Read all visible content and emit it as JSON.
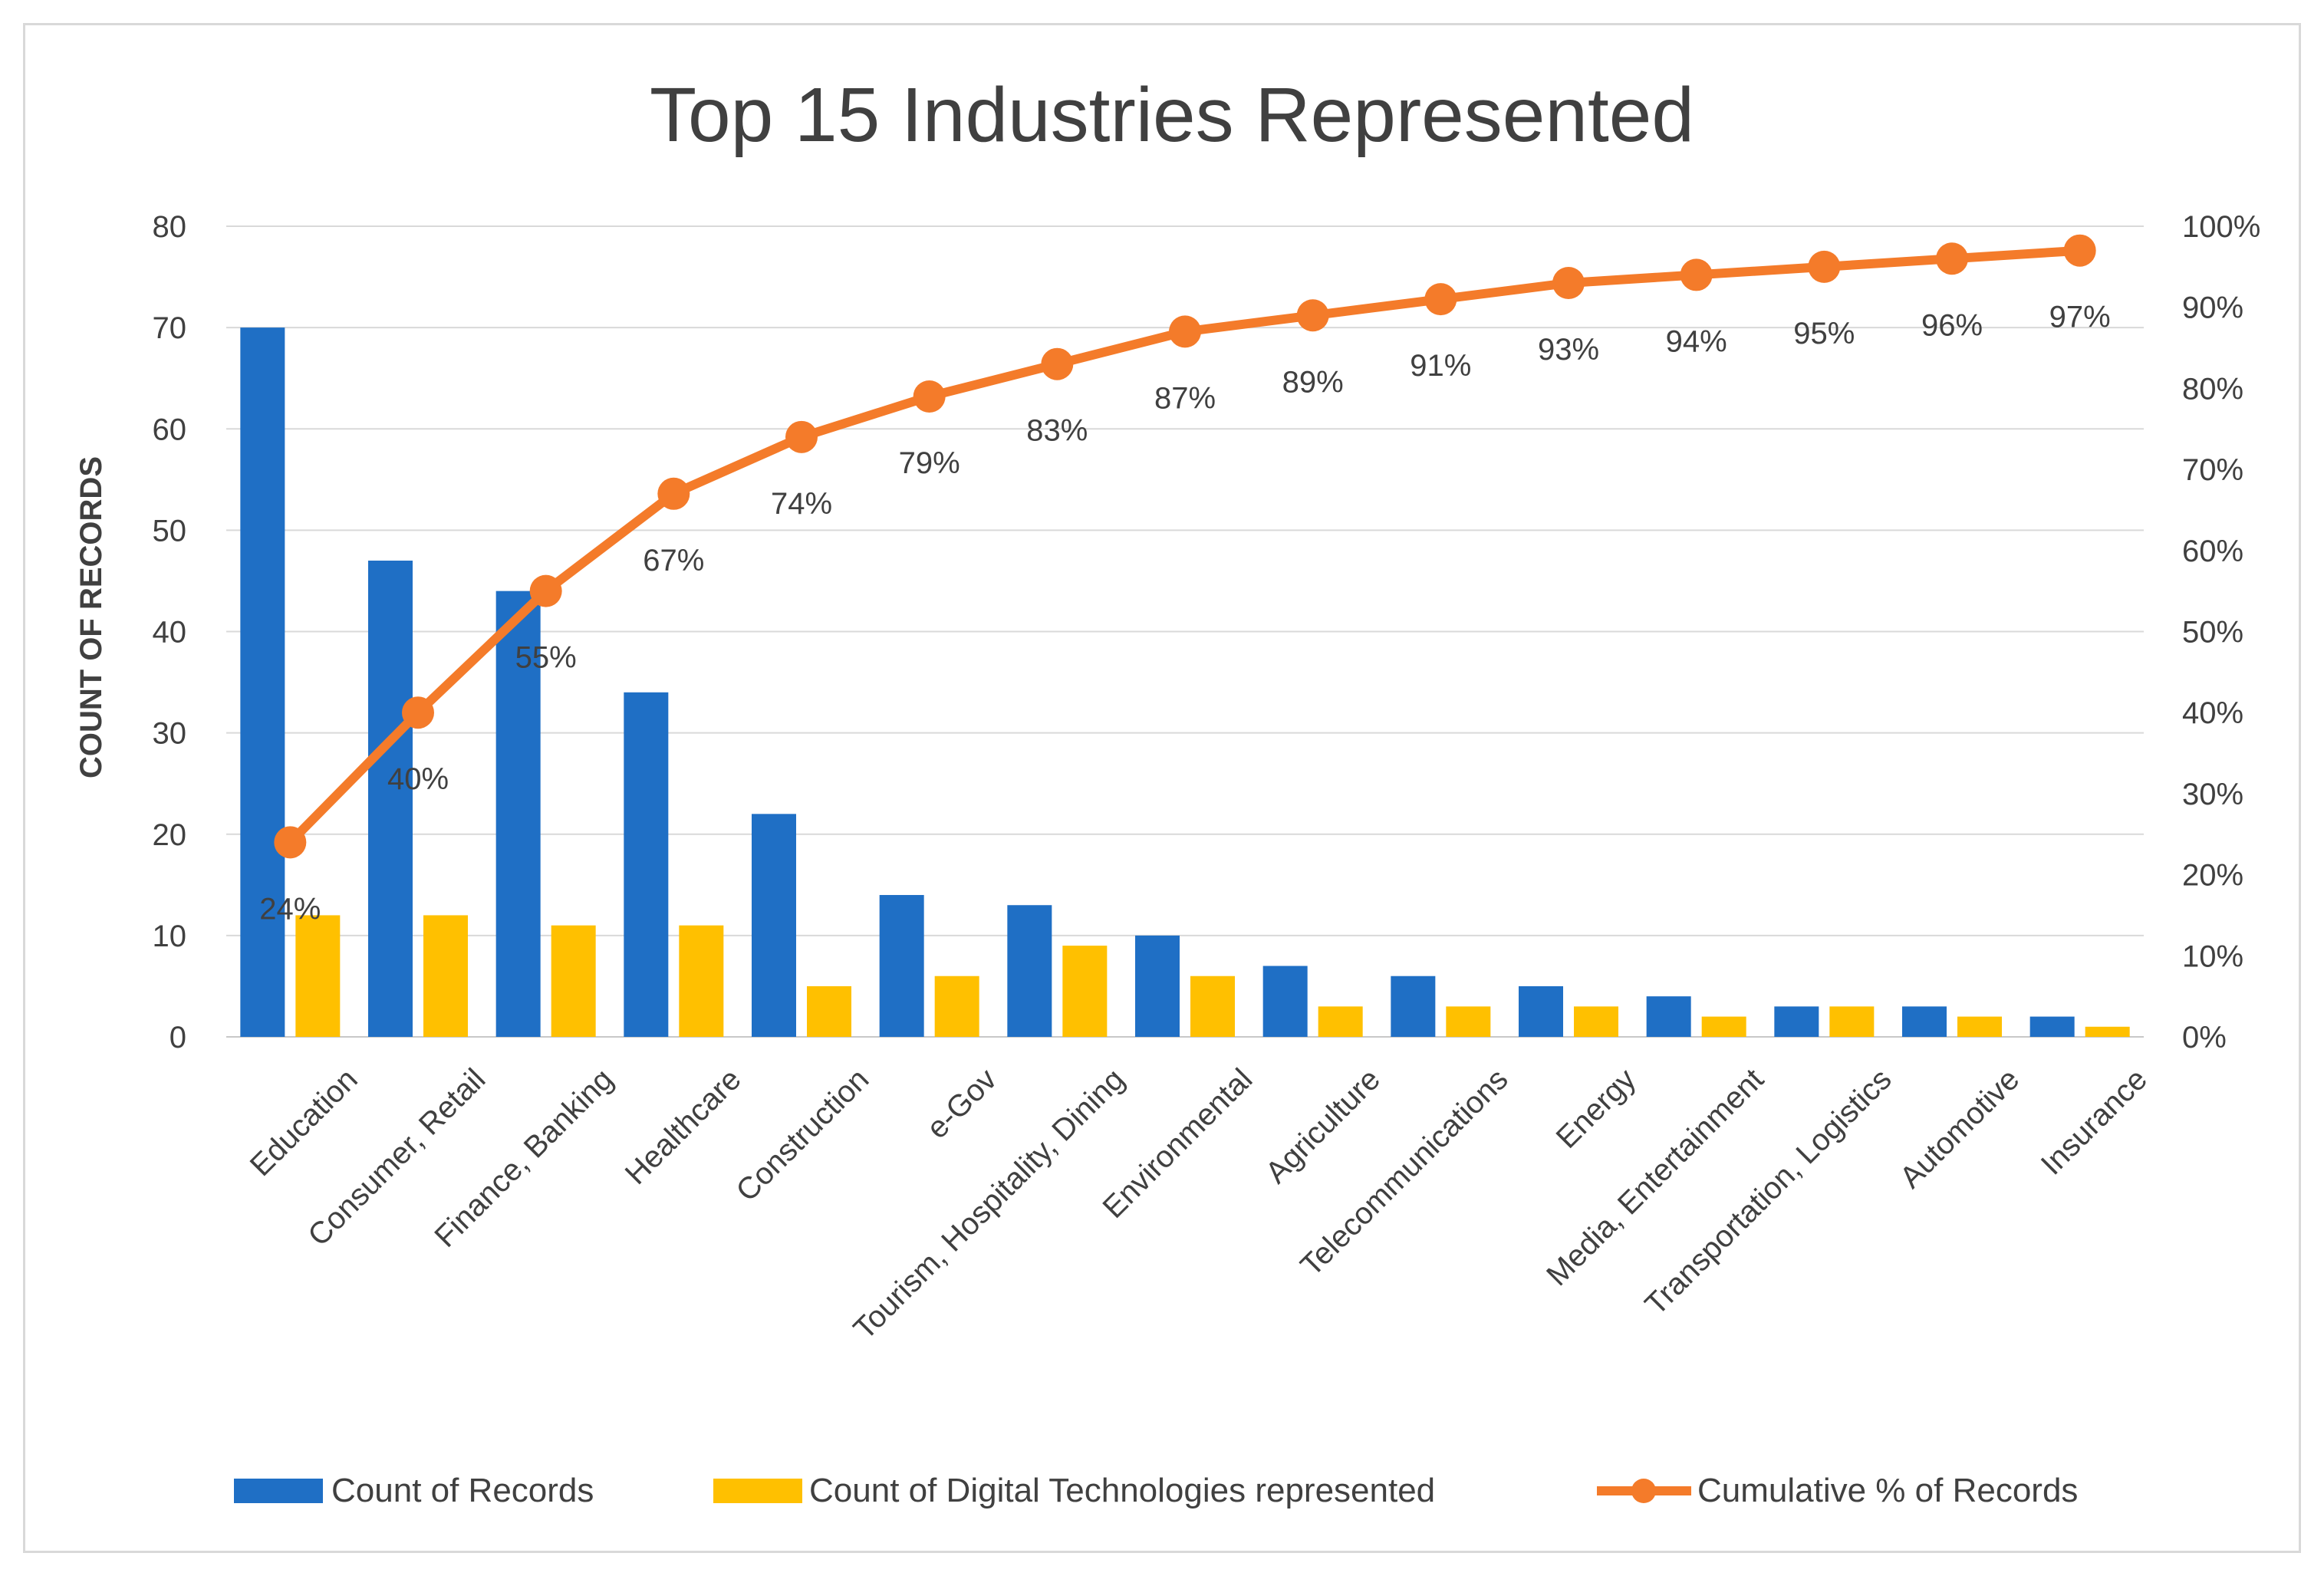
{
  "chart_data": {
    "type": "bar",
    "title": "Top 15 Industries Represented",
    "ylabel": "COUNT OF RECORDS",
    "ylim": [
      0,
      80
    ],
    "y_ticks": [
      "0",
      "10",
      "20",
      "30",
      "40",
      "50",
      "60",
      "70",
      "80"
    ],
    "y2lim": [
      0,
      100
    ],
    "y2_ticks": [
      "0%",
      "10%",
      "20%",
      "30%",
      "40%",
      "50%",
      "60%",
      "70%",
      "80%",
      "90%",
      "100%"
    ],
    "grid": true,
    "legend_position": "bottom",
    "categories": [
      "Education",
      "Consumer, Retail",
      "Finance, Banking",
      "Healthcare",
      "Construction",
      "e-Gov",
      "Tourism, Hospitality, Dining",
      "Environmental",
      "Agriculture",
      "Telecommunications",
      "Energy",
      "Media, Entertainment",
      "Transportation, Logistics",
      "Automotive",
      "Insurance"
    ],
    "series": [
      {
        "name": "Count of Records",
        "type": "bar",
        "axis": "left",
        "color": "#1f6fc5",
        "values": [
          70,
          47,
          44,
          34,
          22,
          14,
          13,
          10,
          7,
          6,
          5,
          4,
          3,
          3,
          2
        ]
      },
      {
        "name": "Count of Digital Technologies represented",
        "type": "bar",
        "axis": "left",
        "color": "#ffc000",
        "values": [
          12,
          12,
          11,
          11,
          5,
          6,
          9,
          6,
          3,
          3,
          3,
          2,
          3,
          2,
          1
        ]
      },
      {
        "name": "Cumulative % of Records",
        "type": "line",
        "axis": "right",
        "color": "#f47b2a",
        "values": [
          24,
          40,
          55,
          67,
          74,
          79,
          83,
          87,
          89,
          91,
          93,
          94,
          95,
          96,
          97
        ],
        "labels": [
          "24%",
          "40%",
          "55%",
          "67%",
          "74%",
          "79%",
          "83%",
          "87%",
          "89%",
          "91%",
          "93%",
          "94%",
          "95%",
          "96%",
          "97%"
        ]
      }
    ]
  }
}
